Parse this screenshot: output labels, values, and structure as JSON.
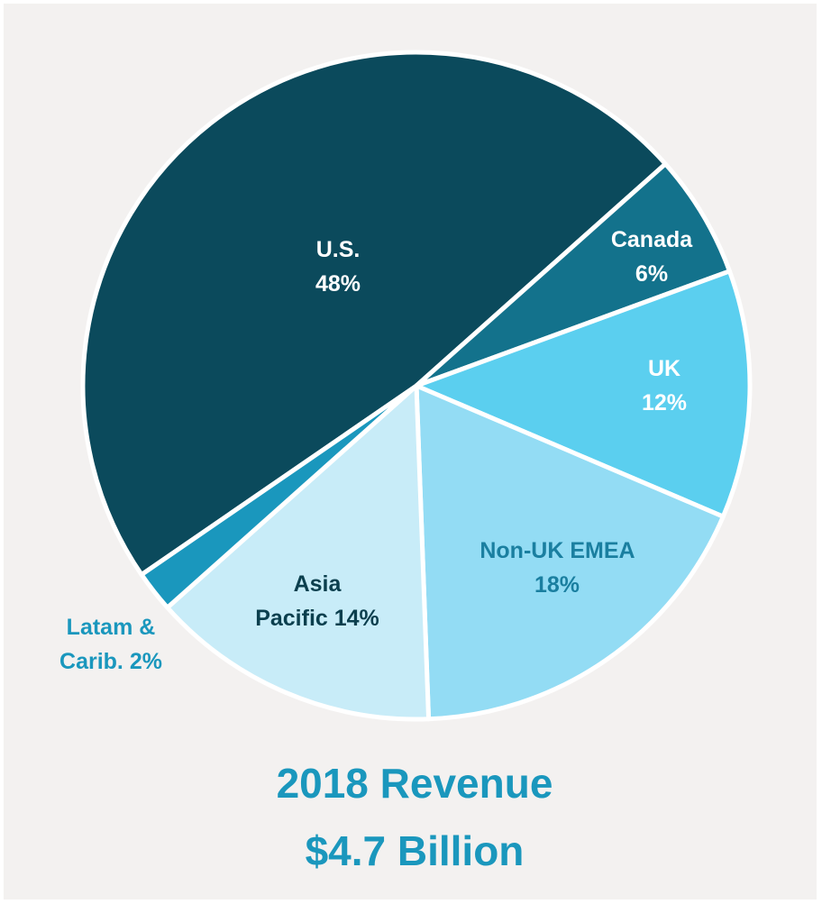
{
  "chart_data": {
    "type": "pie",
    "title": "2018 Revenue",
    "subtitle": "$4.7 Billion",
    "categories": [
      "U.S.",
      "Canada",
      "UK",
      "Non-UK EMEA",
      "Asia Pacific",
      "Latam & Carib."
    ],
    "values": [
      48,
      6,
      12,
      18,
      14,
      2
    ],
    "value_labels": [
      "48%",
      "6%",
      "12%",
      "18%",
      "14%",
      "2%"
    ],
    "colors": [
      "#0b4a5c",
      "#13728c",
      "#5bcfef",
      "#93dcf4",
      "#c8ecf8",
      "#1a97bd"
    ]
  }
}
